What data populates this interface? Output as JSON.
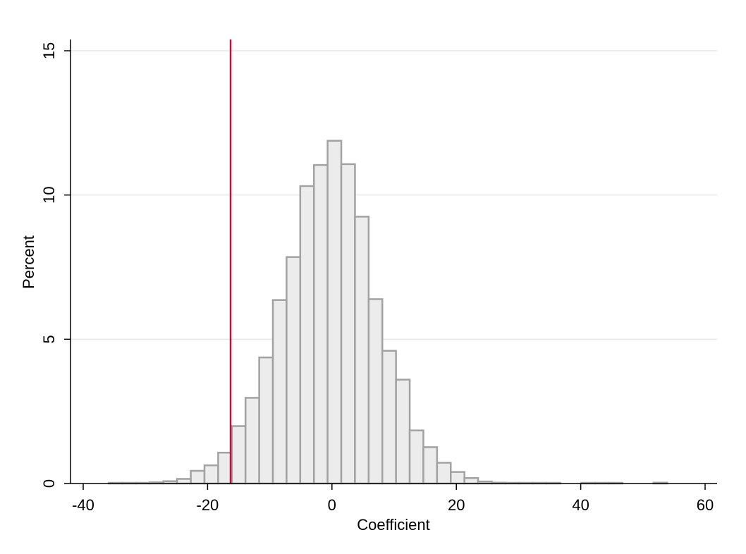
{
  "chart_data": {
    "type": "bar",
    "subtype": "histogram",
    "xlabel": "Coefficient",
    "ylabel": "Percent",
    "xlim": [
      -42,
      62
    ],
    "ylim": [
      0,
      15
    ],
    "x_ticks": [
      -40,
      -20,
      0,
      20,
      40,
      60
    ],
    "y_ticks": [
      0,
      5,
      10,
      15
    ],
    "grid": "horizontal",
    "bin_width": 2.2,
    "bins": [
      {
        "x0": -35.9,
        "value": 0.02
      },
      {
        "x0": -33.7,
        "value": 0.02
      },
      {
        "x0": -31.5,
        "value": 0.01
      },
      {
        "x0": -29.3,
        "value": 0.04
      },
      {
        "x0": -27.1,
        "value": 0.08
      },
      {
        "x0": -24.9,
        "value": 0.16
      },
      {
        "x0": -22.7,
        "value": 0.44
      },
      {
        "x0": -20.5,
        "value": 0.63
      },
      {
        "x0": -18.3,
        "value": 1.07
      },
      {
        "x0": -16.1,
        "value": 1.99
      },
      {
        "x0": -13.9,
        "value": 2.97
      },
      {
        "x0": -11.7,
        "value": 4.37
      },
      {
        "x0": -9.5,
        "value": 6.36
      },
      {
        "x0": -7.3,
        "value": 7.85
      },
      {
        "x0": -5.1,
        "value": 10.31
      },
      {
        "x0": -2.9,
        "value": 11.04
      },
      {
        "x0": -0.7,
        "value": 11.88
      },
      {
        "x0": 1.5,
        "value": 11.07
      },
      {
        "x0": 3.7,
        "value": 9.25
      },
      {
        "x0": 5.9,
        "value": 6.39
      },
      {
        "x0": 8.1,
        "value": 4.6
      },
      {
        "x0": 10.3,
        "value": 3.6
      },
      {
        "x0": 12.5,
        "value": 1.84
      },
      {
        "x0": 14.7,
        "value": 1.26
      },
      {
        "x0": 16.9,
        "value": 0.72
      },
      {
        "x0": 19.1,
        "value": 0.4
      },
      {
        "x0": 21.3,
        "value": 0.19
      },
      {
        "x0": 23.5,
        "value": 0.07
      },
      {
        "x0": 25.7,
        "value": 0.03
      },
      {
        "x0": 27.9,
        "value": 0.02
      },
      {
        "x0": 30.1,
        "value": 0.02
      },
      {
        "x0": 32.3,
        "value": 0.01
      },
      {
        "x0": 34.5,
        "value": 0.02
      },
      {
        "x0": 40.1,
        "value": 0.02
      },
      {
        "x0": 42.3,
        "value": 0.02
      },
      {
        "x0": 44.5,
        "value": 0.01
      },
      {
        "x0": 51.7,
        "value": 0.03
      }
    ],
    "reference_line": {
      "x": -16.3,
      "color": "#c0103c"
    },
    "colors": {
      "bar_fill": "#ececec",
      "bar_stroke": "#a2a2a2",
      "grid": "#e6e6e6",
      "axis": "#000000"
    }
  }
}
